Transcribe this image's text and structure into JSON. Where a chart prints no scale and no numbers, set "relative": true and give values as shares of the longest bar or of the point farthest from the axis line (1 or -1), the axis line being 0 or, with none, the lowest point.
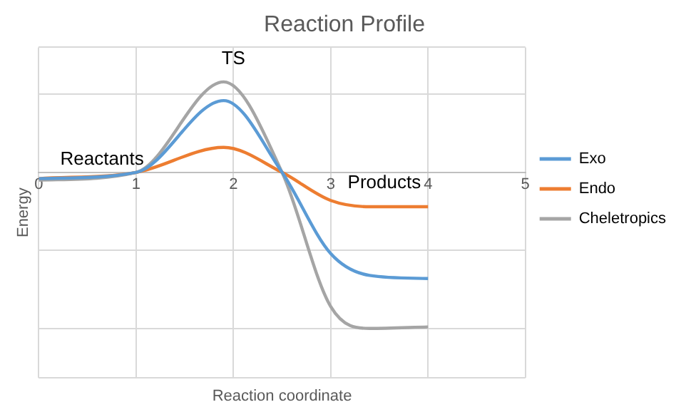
{
  "chart_data": {
    "type": "line",
    "title": "Reaction Profile",
    "xlabel": "Reaction coordinate",
    "ylabel": "Energy",
    "relative": true,
    "x": [
      0,
      1,
      1.9,
      2.5,
      3,
      3.4,
      4
    ],
    "series": [
      {
        "name": "Exo",
        "color": "#5b9bd5",
        "values": [
          -0.04,
          0,
          0.46,
          0,
          -0.52,
          -0.66,
          -0.68
        ]
      },
      {
        "name": "Endo",
        "color": "#ed7d31",
        "values": [
          -0.04,
          0,
          0.16,
          0,
          -0.18,
          -0.22,
          -0.22
        ]
      },
      {
        "name": "Cheletropics",
        "color": "#a5a5a5",
        "values": [
          -0.05,
          0,
          0.58,
          0,
          -0.86,
          -1,
          -0.99
        ]
      }
    ],
    "xlim": [
      0,
      5
    ],
    "xticks": [
      0,
      1,
      2,
      3,
      4,
      5
    ],
    "grid": true,
    "legend": "right",
    "marker": "none",
    "line_style": "solid",
    "annotations": [
      "Reactants",
      "TS",
      "Products"
    ]
  }
}
